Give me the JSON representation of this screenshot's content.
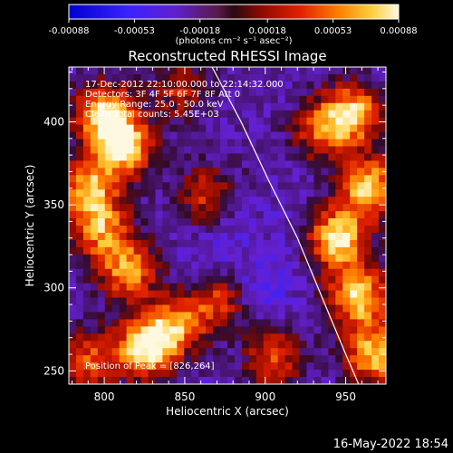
{
  "chart_data": {
    "type": "heatmap",
    "title": "Reconstructed RHESSI Image",
    "xlabel": "Heliocentric X (arcsec)",
    "ylabel": "Heliocentric Y (arcsec)",
    "xlim": [
      778,
      975
    ],
    "ylim": [
      242,
      433
    ],
    "x_ticks": [
      800,
      850,
      900,
      950
    ],
    "y_ticks": [
      250,
      300,
      350,
      400
    ],
    "colorbar": {
      "ticks": [
        "-0.00088",
        "-0.00053",
        "-0.00018",
        "0.00018",
        "0.00053",
        "0.00088"
      ],
      "units_label": "(photons cm⁻² s⁻¹ asec⁻²)",
      "range": [
        -0.00088,
        0.00088
      ]
    },
    "annotations": [
      "17-Dec-2012 22:10:00.000 to 22:14:32.000",
      "Detectors: 3F 4F 5F 6F 7F 8F  Att 0",
      "Energy Range: 25.0 - 50.0 keV",
      "Clean     Total counts: 5.45E+03"
    ],
    "peak_label": "Position of Peak = [826,264]",
    "peak": [
      826,
      264
    ],
    "limb_curve": [
      [
        867,
        433
      ],
      [
        885,
        400
      ],
      [
        902,
        365
      ],
      [
        920,
        330
      ],
      [
        935,
        295
      ],
      [
        950,
        260
      ],
      [
        958,
        242
      ]
    ],
    "blobs": [
      {
        "x": 800,
        "y": 405,
        "value": 0.00075
      },
      {
        "x": 812,
        "y": 385,
        "value": 0.00082
      },
      {
        "x": 790,
        "y": 360,
        "value": 0.00065
      },
      {
        "x": 798,
        "y": 335,
        "value": 0.00055
      },
      {
        "x": 815,
        "y": 310,
        "value": 0.0006
      },
      {
        "x": 826,
        "y": 264,
        "value": 0.00088
      },
      {
        "x": 845,
        "y": 278,
        "value": 0.0005
      },
      {
        "x": 870,
        "y": 292,
        "value": 0.00035
      },
      {
        "x": 790,
        "y": 255,
        "value": 0.00045
      },
      {
        "x": 905,
        "y": 258,
        "value": 0.0004
      },
      {
        "x": 955,
        "y": 405,
        "value": 0.0007
      },
      {
        "x": 965,
        "y": 360,
        "value": 0.00078
      },
      {
        "x": 945,
        "y": 330,
        "value": 0.00085
      },
      {
        "x": 958,
        "y": 295,
        "value": 0.0008
      },
      {
        "x": 968,
        "y": 260,
        "value": 0.00072
      },
      {
        "x": 935,
        "y": 395,
        "value": 0.00045
      },
      {
        "x": 862,
        "y": 355,
        "value": 0.0003
      },
      {
        "x": 848,
        "y": 420,
        "value": 0.00025
      },
      {
        "x": 875,
        "y": 330,
        "value": -0.0004
      },
      {
        "x": 860,
        "y": 310,
        "value": -0.00035
      },
      {
        "x": 900,
        "y": 300,
        "value": -0.0005
      },
      {
        "x": 885,
        "y": 380,
        "value": -0.0002
      },
      {
        "x": 910,
        "y": 340,
        "value": -0.0003
      }
    ]
  },
  "footer": {
    "timestamp": "16-May-2022 18:54"
  }
}
